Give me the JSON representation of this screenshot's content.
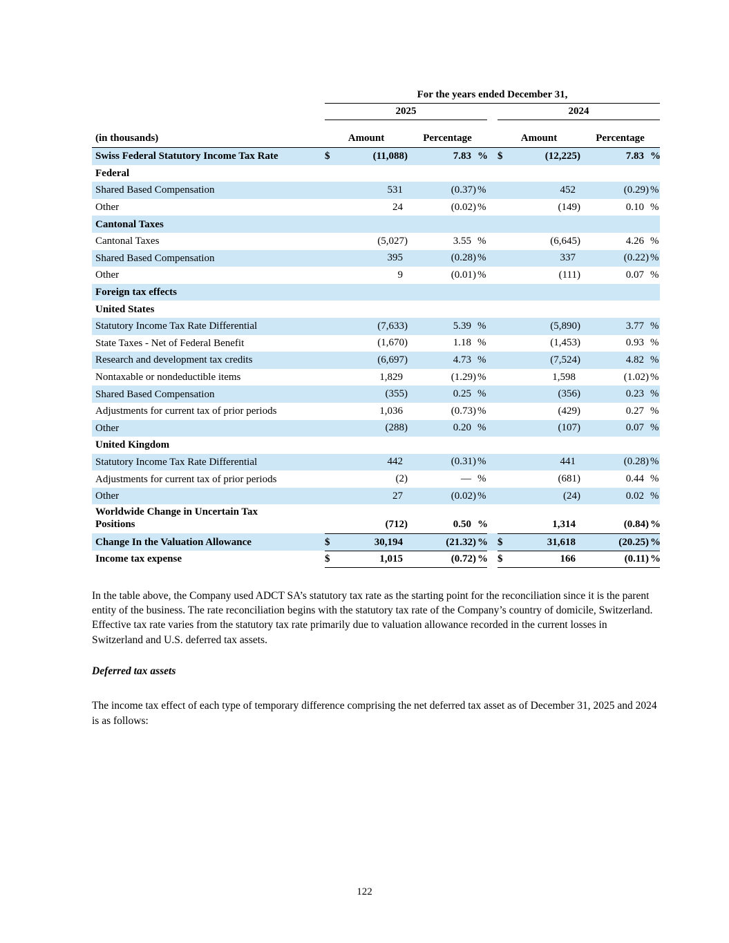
{
  "colors": {
    "row_highlight": "#cde7f7"
  },
  "page": {
    "number": "122"
  },
  "table": {
    "title": "For the years ended December 31,",
    "year_cols": [
      "2025",
      "2024"
    ],
    "in_thousands_label": "(in thousands)",
    "col_headers": {
      "amount": "Amount",
      "percentage": "Percentage"
    },
    "percent_sign": "%",
    "rows": [
      {
        "label": "Swiss Federal Statutory Income Tax Rate",
        "bold": true,
        "shade": true,
        "d1": "$",
        "a1": "(11,088)",
        "p1": "7.83",
        "d2": "$",
        "a2": "(12,225)",
        "p2": "7.83"
      },
      {
        "label": "Federal",
        "bold": true,
        "shade": false,
        "section": true
      },
      {
        "label": "Shared Based Compensation",
        "shade": true,
        "a1": "531",
        "p1": "(0.37)",
        "a2": "452",
        "p2": "(0.29)"
      },
      {
        "label": "Other",
        "shade": false,
        "a1": "24",
        "p1": "(0.02)",
        "a2": "(149)",
        "p2": "0.10"
      },
      {
        "label": "Cantonal Taxes",
        "bold": true,
        "shade": true,
        "section": true
      },
      {
        "label": "Cantonal Taxes",
        "shade": false,
        "a1": "(5,027)",
        "p1": "3.55",
        "a2": "(6,645)",
        "p2": "4.26"
      },
      {
        "label": "Shared Based Compensation",
        "shade": true,
        "a1": "395",
        "p1": "(0.28)",
        "a2": "337",
        "p2": "(0.22)"
      },
      {
        "label": "Other",
        "shade": false,
        "a1": "9",
        "p1": "(0.01)",
        "a2": "(111)",
        "p2": "0.07"
      },
      {
        "label": "Foreign tax effects",
        "bold": true,
        "shade": true,
        "section": true
      },
      {
        "label": "United States",
        "bold": true,
        "shade": false,
        "section": true
      },
      {
        "label": "Statutory Income Tax Rate Differential",
        "shade": true,
        "a1": "(7,633)",
        "p1": "5.39",
        "a2": "(5,890)",
        "p2": "3.77"
      },
      {
        "label": "State Taxes - Net of Federal Benefit",
        "shade": false,
        "a1": "(1,670)",
        "p1": "1.18",
        "a2": "(1,453)",
        "p2": "0.93"
      },
      {
        "label": "Research and development tax credits",
        "shade": true,
        "a1": "(6,697)",
        "p1": "4.73",
        "a2": "(7,524)",
        "p2": "4.82"
      },
      {
        "label": "Nontaxable or nondeductible items",
        "shade": false,
        "a1": "1,829",
        "p1": "(1.29)",
        "a2": "1,598",
        "p2": "(1.02)"
      },
      {
        "label": "Shared Based Compensation",
        "shade": true,
        "a1": "(355)",
        "p1": "0.25",
        "a2": "(356)",
        "p2": "0.23"
      },
      {
        "label": "Adjustments for current tax of prior periods",
        "shade": false,
        "a1": "1,036",
        "p1": "(0.73)",
        "a2": "(429)",
        "p2": "0.27"
      },
      {
        "label": "Other",
        "shade": true,
        "a1": "(288)",
        "p1": "0.20",
        "a2": "(107)",
        "p2": "0.07"
      },
      {
        "label": "United Kingdom",
        "bold": true,
        "shade": false,
        "section": true
      },
      {
        "label": "Statutory Income Tax Rate Differential",
        "shade": true,
        "a1": "442",
        "p1": "(0.31)",
        "a2": "441",
        "p2": "(0.28)"
      },
      {
        "label": "Adjustments for current tax of prior periods",
        "shade": false,
        "a1": "(2)",
        "p1": "—",
        "a2": "(681)",
        "p2": "0.44"
      },
      {
        "label": "Other",
        "shade": true,
        "a1": "27",
        "p1": "(0.02)",
        "a2": "(24)",
        "p2": "0.02"
      },
      {
        "label": "Worldwide Change in Uncertain Tax Positions",
        "bold": true,
        "shade": false,
        "tall": true,
        "a1": "(712)",
        "p1": "0.50",
        "a2": "1,314",
        "p2": "(0.84)"
      },
      {
        "label": "Change In the Valuation Allowance",
        "bold": true,
        "shade": true,
        "border_top": true,
        "d1": "$",
        "a1": "30,194",
        "p1": "(21.32)",
        "d2": "$",
        "a2": "31,618",
        "p2": "(20.25)"
      },
      {
        "label": "Income tax expense",
        "bold": true,
        "shade": false,
        "border_top": true,
        "border_bottom": true,
        "d1": "$",
        "a1": "1,015",
        "p1": "(0.72)",
        "d2": "$",
        "a2": "166",
        "p2": "(0.11)"
      }
    ]
  },
  "body_text": {
    "paragraph_1": "In the table above, the Company used ADCT SA’s statutory tax rate as the starting point for the reconciliation since it is the parent entity of the business. The rate reconciliation begins with the statutory tax rate of the Company’s country of domicile, Switzerland. Effective tax rate varies from the statutory tax rate primarily due to valuation allowance recorded in the current losses in Switzerland and U.S. deferred tax assets.",
    "deferred_heading": "Deferred tax assets",
    "paragraph_2": "The income tax effect of each type of temporary difference comprising the net deferred tax asset as of December 31, 2025 and 2024 is as follows:"
  }
}
